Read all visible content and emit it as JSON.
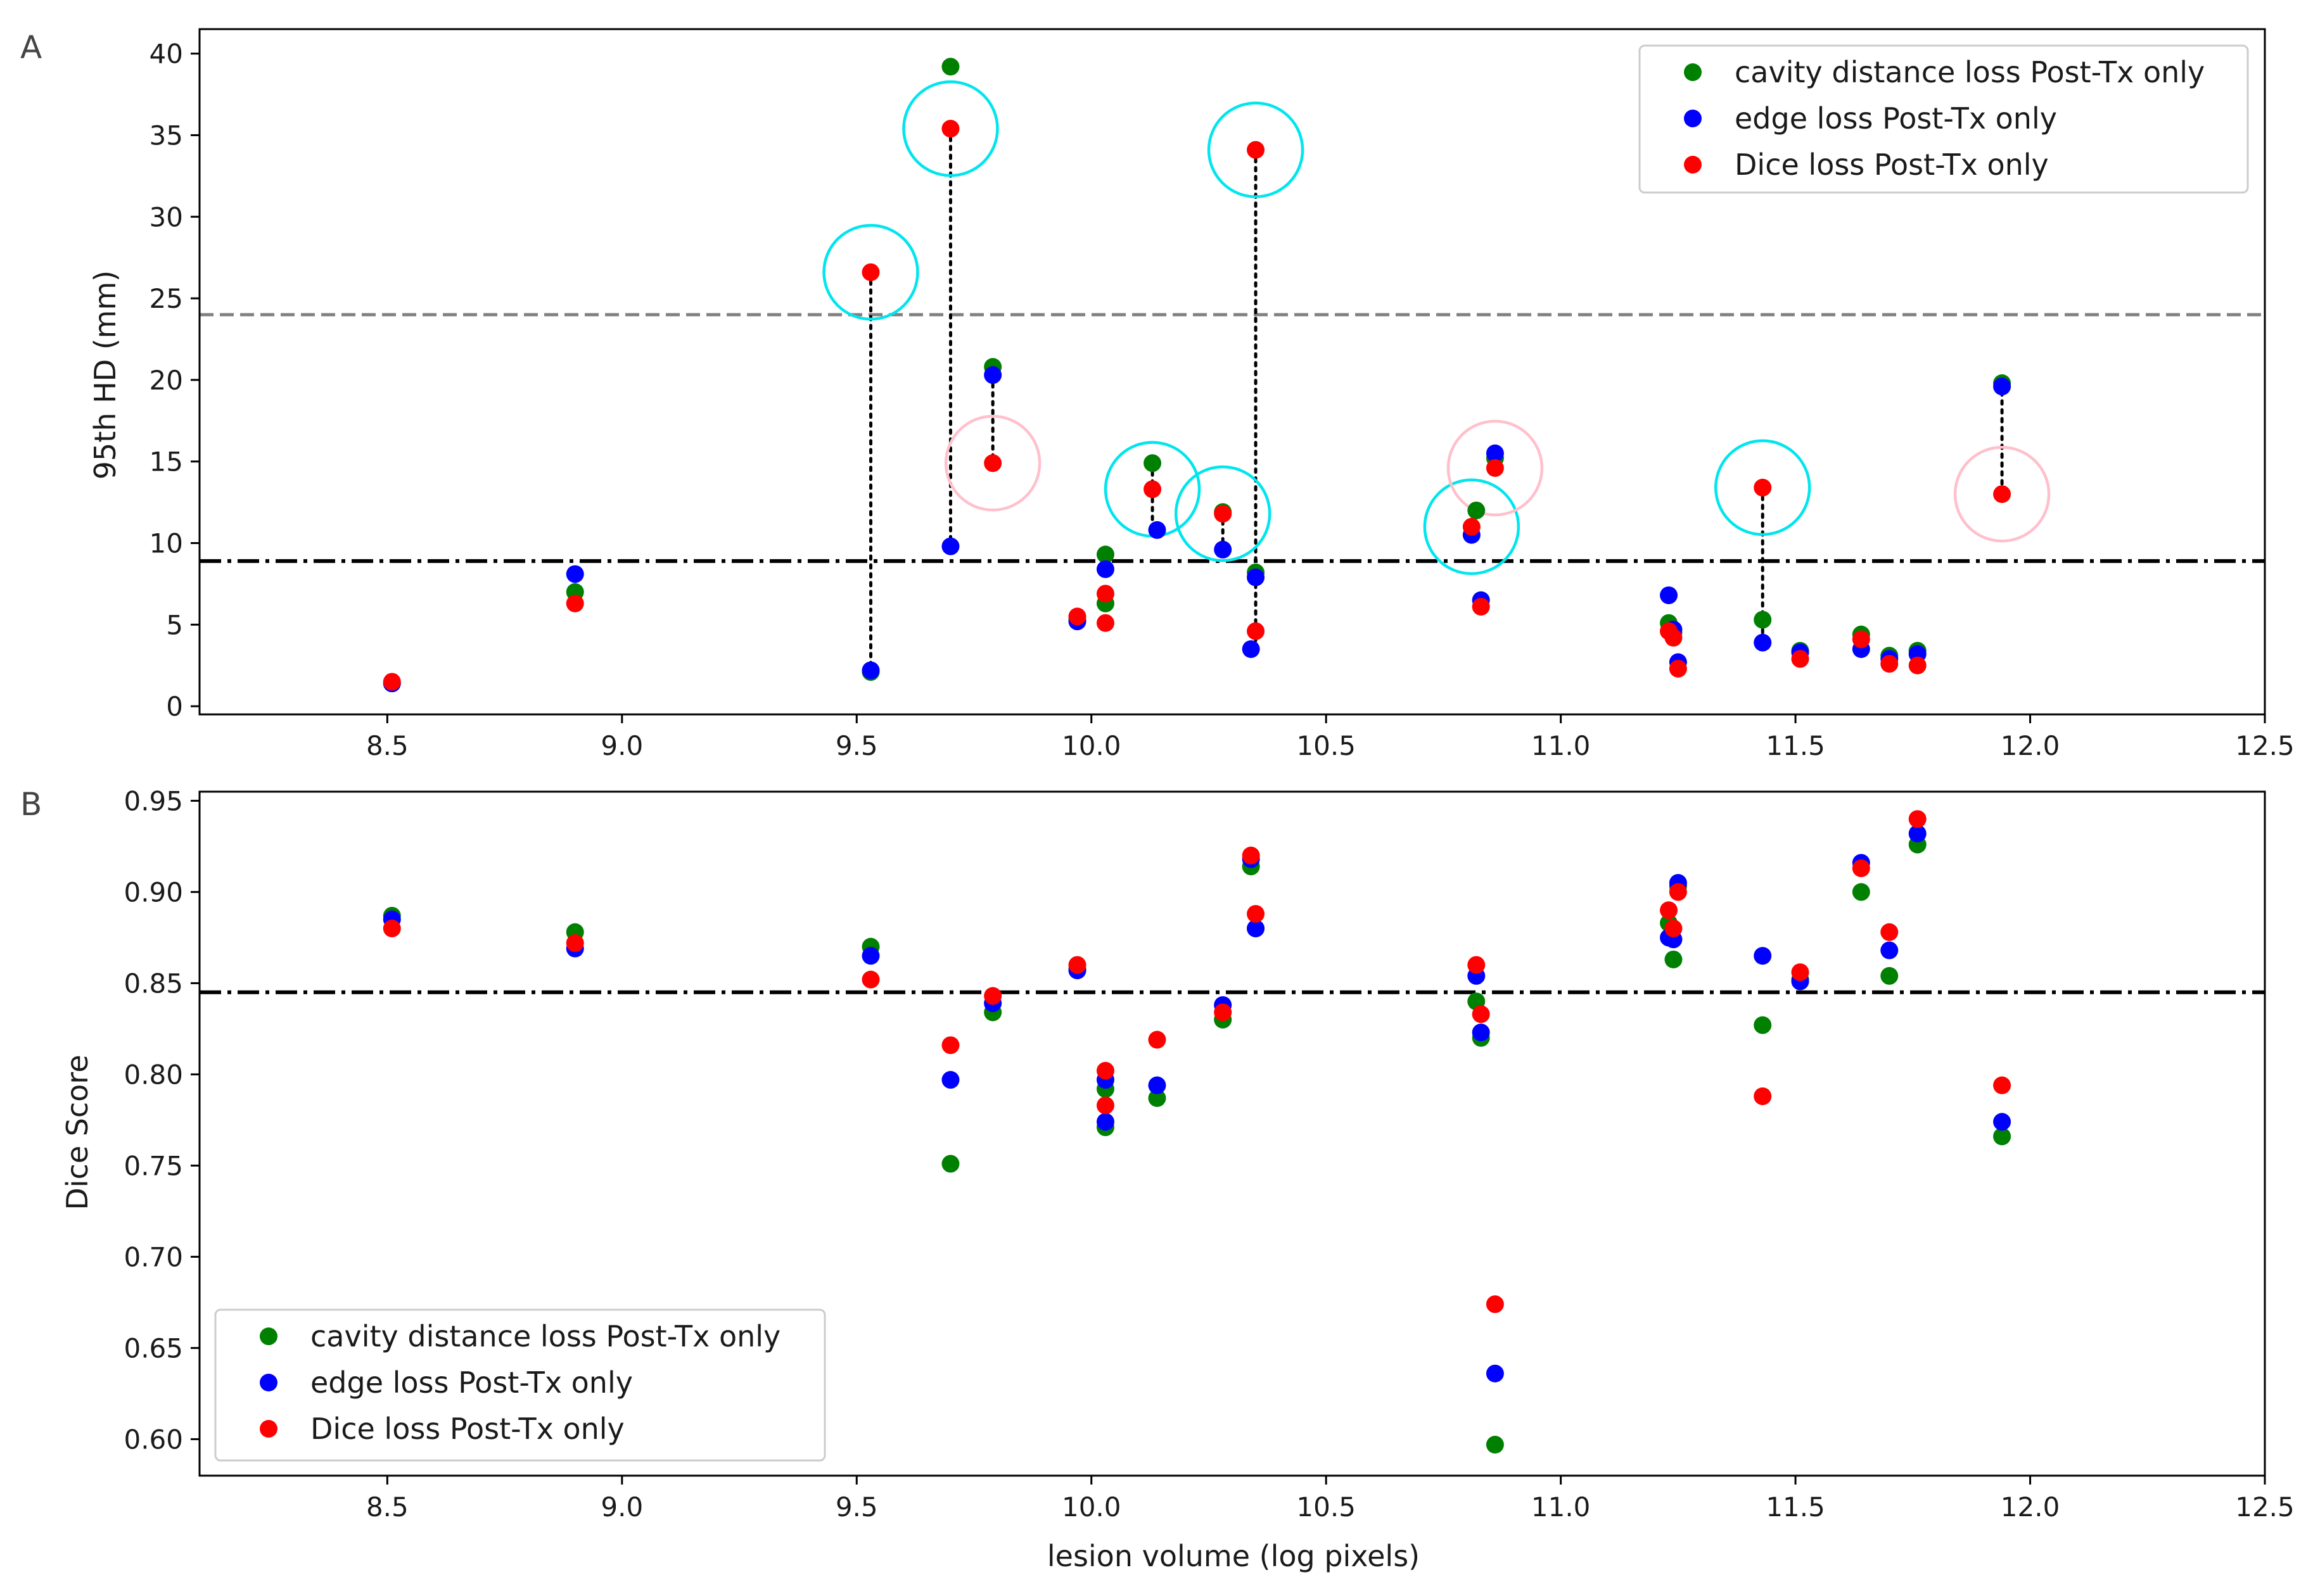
{
  "chart_data": [
    {
      "type": "scatter",
      "panel_label": "A",
      "title": "",
      "xlabel": "",
      "ylabel": "95th HD (mm)",
      "xlim": [
        8.1,
        12.5
      ],
      "ylim": [
        -0.5,
        41.5
      ],
      "xticks": [
        "8.5",
        "9.0",
        "9.5",
        "10.0",
        "10.5",
        "11.0",
        "11.5",
        "12.0",
        "12.5"
      ],
      "yticks": [
        "0",
        "5",
        "10",
        "15",
        "20",
        "25",
        "30",
        "35",
        "40"
      ],
      "grid": false,
      "legend_position": "top-right",
      "reference_lines": [
        {
          "y": 24.0,
          "style": "dashed",
          "color": "#808080"
        },
        {
          "y": 8.9,
          "style": "dashdot",
          "color": "#000000"
        }
      ],
      "series": [
        {
          "name": "cavity distance loss Post-Tx only",
          "color": "#008000",
          "points": [
            [
              8.51,
              1.4
            ],
            [
              8.9,
              7.0
            ],
            [
              9.53,
              2.1
            ],
            [
              9.7,
              39.2
            ],
            [
              9.79,
              20.8
            ],
            [
              9.97,
              5.3
            ],
            [
              10.03,
              9.3
            ],
            [
              10.03,
              6.3
            ],
            [
              10.13,
              14.9
            ],
            [
              10.28,
              11.9
            ],
            [
              10.35,
              8.2
            ],
            [
              10.82,
              12.0
            ],
            [
              10.86,
              15.2
            ],
            [
              11.23,
              5.1
            ],
            [
              11.24,
              4.5
            ],
            [
              11.43,
              5.3
            ],
            [
              11.51,
              3.4
            ],
            [
              11.64,
              4.4
            ],
            [
              11.7,
              3.1
            ],
            [
              11.76,
              3.4
            ],
            [
              11.94,
              19.8
            ]
          ]
        },
        {
          "name": "edge loss Post-Tx only",
          "color": "#0000ff",
          "points": [
            [
              8.51,
              1.4
            ],
            [
              8.9,
              8.1
            ],
            [
              9.53,
              2.2
            ],
            [
              9.7,
              9.8
            ],
            [
              9.79,
              20.3
            ],
            [
              9.97,
              5.2
            ],
            [
              10.03,
              8.4
            ],
            [
              10.14,
              10.8
            ],
            [
              10.28,
              9.6
            ],
            [
              10.34,
              3.5
            ],
            [
              10.35,
              7.9
            ],
            [
              10.81,
              10.5
            ],
            [
              10.83,
              6.5
            ],
            [
              10.86,
              15.5
            ],
            [
              11.23,
              6.8
            ],
            [
              11.24,
              4.7
            ],
            [
              11.25,
              2.7
            ],
            [
              11.43,
              3.9
            ],
            [
              11.51,
              3.3
            ],
            [
              11.64,
              3.5
            ],
            [
              11.7,
              2.9
            ],
            [
              11.76,
              3.2
            ],
            [
              11.94,
              19.6
            ]
          ]
        },
        {
          "name": "Dice loss Post-Tx only",
          "color": "#ff0000",
          "points": [
            [
              8.51,
              1.5
            ],
            [
              8.9,
              6.3
            ],
            [
              9.53,
              26.6
            ],
            [
              9.7,
              35.4
            ],
            [
              9.79,
              14.9
            ],
            [
              9.97,
              5.5
            ],
            [
              10.03,
              6.9
            ],
            [
              10.03,
              5.1
            ],
            [
              10.13,
              13.3
            ],
            [
              10.28,
              11.8
            ],
            [
              10.35,
              34.1
            ],
            [
              10.35,
              4.6
            ],
            [
              10.81,
              11.0
            ],
            [
              10.83,
              6.1
            ],
            [
              10.86,
              14.6
            ],
            [
              11.23,
              4.6
            ],
            [
              11.24,
              4.2
            ],
            [
              11.25,
              2.3
            ],
            [
              11.43,
              13.4
            ],
            [
              11.51,
              2.9
            ],
            [
              11.64,
              4.1
            ],
            [
              11.7,
              2.6
            ],
            [
              11.76,
              2.5
            ],
            [
              11.94,
              13.0
            ]
          ]
        }
      ],
      "connectors": [
        {
          "x": 9.53,
          "y1": 26.6,
          "y2": 2.2
        },
        {
          "x": 9.7,
          "y1": 35.4,
          "y2": 9.8
        },
        {
          "x": 9.79,
          "y1": 20.3,
          "y2": 14.9
        },
        {
          "x": 10.13,
          "y1": 14.9,
          "y2": 10.8
        },
        {
          "x": 10.28,
          "y1": 11.9,
          "y2": 9.6
        },
        {
          "x": 10.35,
          "y1": 34.1,
          "y2": 3.5
        },
        {
          "x": 10.81,
          "y1": 12.0,
          "y2": 10.5
        },
        {
          "x": 10.86,
          "y1": 15.5,
          "y2": 14.6
        },
        {
          "x": 11.43,
          "y1": 13.4,
          "y2": 3.9
        },
        {
          "x": 11.94,
          "y1": 19.8,
          "y2": 13.0
        }
      ],
      "highlight_circles": [
        {
          "x": 9.53,
          "y": 26.6,
          "color": "#00e5ee"
        },
        {
          "x": 9.7,
          "y": 35.4,
          "color": "#00e5ee"
        },
        {
          "x": 9.79,
          "y": 14.9,
          "color": "#ffc0cb"
        },
        {
          "x": 10.13,
          "y": 13.3,
          "color": "#00e5ee"
        },
        {
          "x": 10.28,
          "y": 11.8,
          "color": "#00e5ee"
        },
        {
          "x": 10.35,
          "y": 34.1,
          "color": "#00e5ee"
        },
        {
          "x": 10.81,
          "y": 11.0,
          "color": "#00e5ee"
        },
        {
          "x": 10.86,
          "y": 14.6,
          "color": "#ffc0cb"
        },
        {
          "x": 11.43,
          "y": 13.4,
          "color": "#00e5ee"
        },
        {
          "x": 11.94,
          "y": 13.0,
          "color": "#ffc0cb"
        }
      ]
    },
    {
      "type": "scatter",
      "panel_label": "B",
      "title": "",
      "xlabel": "lesion volume (log pixels)",
      "ylabel": "Dice Score",
      "xlim": [
        8.1,
        12.5
      ],
      "ylim": [
        0.58,
        0.955
      ],
      "xticks": [
        "8.5",
        "9.0",
        "9.5",
        "10.0",
        "10.5",
        "11.0",
        "11.5",
        "12.0",
        "12.5"
      ],
      "yticks": [
        "0.60",
        "0.65",
        "0.70",
        "0.75",
        "0.80",
        "0.85",
        "0.90",
        "0.95"
      ],
      "grid": false,
      "legend_position": "bottom-left",
      "reference_lines": [
        {
          "y": 0.845,
          "style": "dashdot",
          "color": "#000000"
        }
      ],
      "series": [
        {
          "name": "cavity distance loss Post-Tx only",
          "color": "#008000",
          "points": [
            [
              8.51,
              0.887
            ],
            [
              8.9,
              0.878
            ],
            [
              9.53,
              0.87
            ],
            [
              9.7,
              0.751
            ],
            [
              9.79,
              0.834
            ],
            [
              9.97,
              0.858
            ],
            [
              10.03,
              0.792
            ],
            [
              10.03,
              0.771
            ],
            [
              10.14,
              0.787
            ],
            [
              10.28,
              0.83
            ],
            [
              10.34,
              0.914
            ],
            [
              10.35,
              0.88
            ],
            [
              10.82,
              0.84
            ],
            [
              10.83,
              0.82
            ],
            [
              10.86,
              0.597
            ],
            [
              11.23,
              0.883
            ],
            [
              11.24,
              0.863
            ],
            [
              11.25,
              0.903
            ],
            [
              11.43,
              0.827
            ],
            [
              11.51,
              0.852
            ],
            [
              11.64,
              0.9
            ],
            [
              11.7,
              0.854
            ],
            [
              11.76,
              0.926
            ],
            [
              11.94,
              0.766
            ]
          ]
        },
        {
          "name": "edge loss Post-Tx only",
          "color": "#0000ff",
          "points": [
            [
              8.51,
              0.885
            ],
            [
              8.9,
              0.869
            ],
            [
              9.53,
              0.865
            ],
            [
              9.7,
              0.797
            ],
            [
              9.79,
              0.839
            ],
            [
              9.97,
              0.857
            ],
            [
              10.03,
              0.774
            ],
            [
              10.03,
              0.797
            ],
            [
              10.14,
              0.794
            ],
            [
              10.28,
              0.838
            ],
            [
              10.34,
              0.918
            ],
            [
              10.35,
              0.88
            ],
            [
              10.82,
              0.854
            ],
            [
              10.83,
              0.823
            ],
            [
              10.86,
              0.636
            ],
            [
              11.23,
              0.875
            ],
            [
              11.24,
              0.874
            ],
            [
              11.25,
              0.905
            ],
            [
              11.43,
              0.865
            ],
            [
              11.51,
              0.851
            ],
            [
              11.64,
              0.916
            ],
            [
              11.7,
              0.868
            ],
            [
              11.76,
              0.932
            ],
            [
              11.94,
              0.774
            ]
          ]
        },
        {
          "name": "Dice loss Post-Tx only",
          "color": "#ff0000",
          "points": [
            [
              8.51,
              0.88
            ],
            [
              8.9,
              0.872
            ],
            [
              9.53,
              0.852
            ],
            [
              9.7,
              0.816
            ],
            [
              9.79,
              0.843
            ],
            [
              9.97,
              0.86
            ],
            [
              10.03,
              0.783
            ],
            [
              10.03,
              0.802
            ],
            [
              10.14,
              0.819
            ],
            [
              10.28,
              0.834
            ],
            [
              10.34,
              0.92
            ],
            [
              10.35,
              0.888
            ],
            [
              10.82,
              0.86
            ],
            [
              10.83,
              0.833
            ],
            [
              10.86,
              0.674
            ],
            [
              11.23,
              0.89
            ],
            [
              11.24,
              0.88
            ],
            [
              11.25,
              0.9
            ],
            [
              11.43,
              0.788
            ],
            [
              11.51,
              0.856
            ],
            [
              11.64,
              0.913
            ],
            [
              11.7,
              0.878
            ],
            [
              11.76,
              0.94
            ],
            [
              11.94,
              0.794
            ]
          ]
        }
      ]
    }
  ]
}
